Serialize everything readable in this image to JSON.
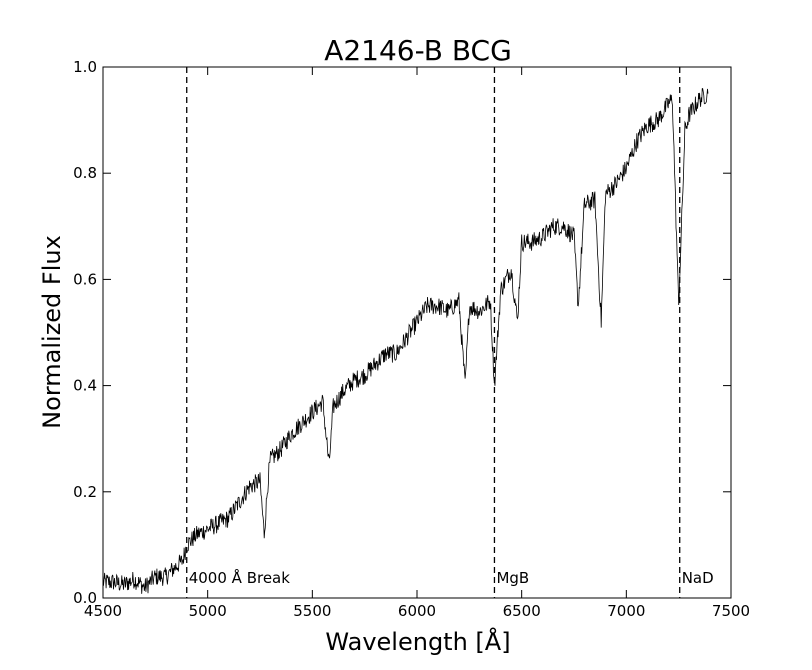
{
  "chart_data": {
    "type": "line",
    "title": "A2146-B BCG",
    "xlabel": "Wavelength [Å]",
    "ylabel": "Normalized Flux",
    "xlim": [
      4500,
      7500
    ],
    "ylim": [
      0.0,
      1.0
    ],
    "x_ticks": [
      "4500",
      "5000",
      "5500",
      "6000",
      "6500",
      "7000",
      "7500"
    ],
    "y_ticks": [
      "0.0",
      "0.2",
      "0.4",
      "0.6",
      "0.8",
      "1.0"
    ],
    "grid": false,
    "series": [
      {
        "color": "#000000",
        "x": [
          4500,
          4550,
          4600,
          4650,
          4700,
          4750,
          4800,
          4850,
          4880,
          4900,
          4950,
          5000,
          5050,
          5100,
          5150,
          5200,
          5250,
          5270,
          5290,
          5300,
          5350,
          5400,
          5450,
          5500,
          5550,
          5580,
          5600,
          5650,
          5700,
          5750,
          5800,
          5850,
          5900,
          5950,
          6000,
          6050,
          6100,
          6150,
          6200,
          6230,
          6250,
          6300,
          6350,
          6370,
          6400,
          6450,
          6480,
          6500,
          6550,
          6600,
          6650,
          6700,
          6750,
          6770,
          6800,
          6850,
          6880,
          6900,
          6950,
          7000,
          7050,
          7100,
          7150,
          7200,
          7220,
          7250,
          7280,
          7300,
          7350,
          7390
        ],
        "y": [
          0.03,
          0.03,
          0.025,
          0.035,
          0.02,
          0.04,
          0.04,
          0.06,
          0.07,
          0.1,
          0.12,
          0.13,
          0.14,
          0.15,
          0.18,
          0.21,
          0.22,
          0.12,
          0.23,
          0.26,
          0.28,
          0.31,
          0.33,
          0.35,
          0.37,
          0.25,
          0.36,
          0.39,
          0.41,
          0.42,
          0.44,
          0.46,
          0.46,
          0.49,
          0.52,
          0.55,
          0.55,
          0.54,
          0.56,
          0.4,
          0.55,
          0.54,
          0.56,
          0.4,
          0.58,
          0.62,
          0.52,
          0.67,
          0.67,
          0.68,
          0.7,
          0.7,
          0.68,
          0.55,
          0.74,
          0.75,
          0.52,
          0.76,
          0.78,
          0.81,
          0.86,
          0.89,
          0.9,
          0.93,
          0.94,
          0.55,
          0.88,
          0.91,
          0.94,
          0.95
        ]
      }
    ],
    "annotations": [
      {
        "x": 4900,
        "label": "4000 Å Break"
      },
      {
        "x": 6370,
        "label": "MgB"
      },
      {
        "x": 7255,
        "label": "NaD"
      }
    ]
  }
}
